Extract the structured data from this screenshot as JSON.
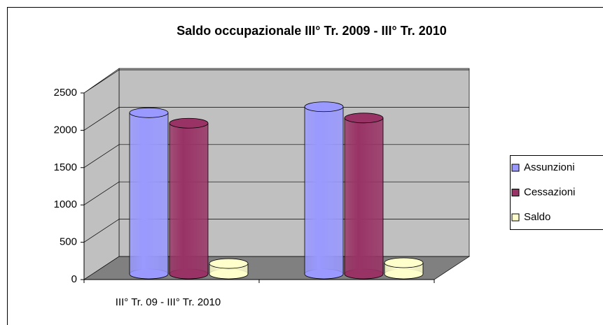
{
  "chart_data": {
    "type": "bar3d",
    "title": "Saldo occupazionale III° Tr. 2009 - III° Tr. 2010",
    "categories": [
      "III° Tr. 09 - III° Tr. 2010",
      null
    ],
    "series": [
      {
        "name": "Assunzioni",
        "color": "#9999ff",
        "values": [
          2160,
          2240
        ]
      },
      {
        "name": "Cessazioni",
        "color": "#993366",
        "values": [
          2020,
          2090
        ]
      },
      {
        "name": "Saldo",
        "color": "#ffffcc",
        "values": [
          140,
          150
        ]
      }
    ],
    "ylim": [
      0,
      2500
    ],
    "yticks": [
      0,
      500,
      1000,
      1500,
      2000,
      2500
    ],
    "grid": true,
    "legend": "right"
  }
}
